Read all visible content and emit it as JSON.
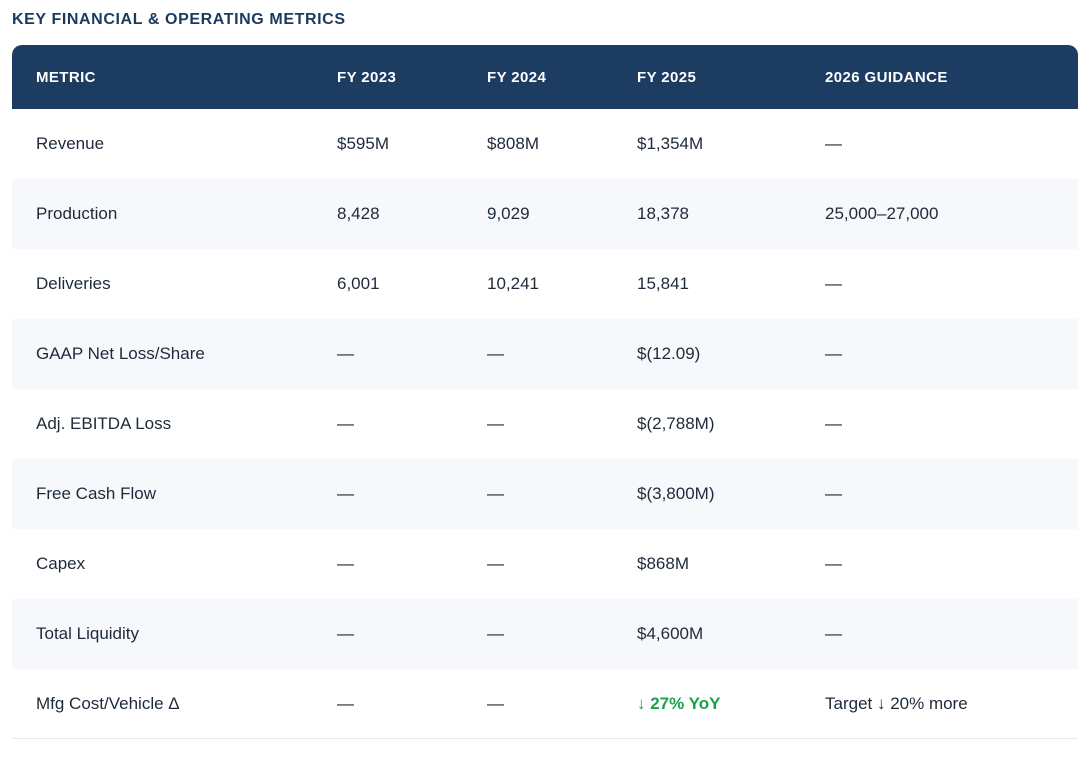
{
  "page": {
    "title": "KEY FINANCIAL & OPERATING METRICS"
  },
  "table": {
    "columns": [
      "METRIC",
      "FY 2023",
      "FY 2024",
      "FY 2025",
      "2026 GUIDANCE"
    ],
    "rows": [
      {
        "metric": "Revenue",
        "fy2023": "$595M",
        "fy2024": "$808M",
        "fy2025": "$1,354M",
        "fy2025_positive": false,
        "guidance": "—"
      },
      {
        "metric": "Production",
        "fy2023": "8,428",
        "fy2024": "9,029",
        "fy2025": "18,378",
        "fy2025_positive": false,
        "guidance": "25,000–27,000"
      },
      {
        "metric": "Deliveries",
        "fy2023": "6,001",
        "fy2024": "10,241",
        "fy2025": "15,841",
        "fy2025_positive": false,
        "guidance": "—"
      },
      {
        "metric": "GAAP Net Loss/Share",
        "fy2023": "—",
        "fy2024": "—",
        "fy2025": "$(12.09)",
        "fy2025_positive": false,
        "guidance": "—"
      },
      {
        "metric": "Adj. EBITDA Loss",
        "fy2023": "—",
        "fy2024": "—",
        "fy2025": "$(2,788M)",
        "fy2025_positive": false,
        "guidance": "—"
      },
      {
        "metric": "Free Cash Flow",
        "fy2023": "—",
        "fy2024": "—",
        "fy2025": "$(3,800M)",
        "fy2025_positive": false,
        "guidance": "—"
      },
      {
        "metric": "Capex",
        "fy2023": "—",
        "fy2024": "—",
        "fy2025": "$868M",
        "fy2025_positive": false,
        "guidance": "—"
      },
      {
        "metric": "Total Liquidity",
        "fy2023": "—",
        "fy2024": "—",
        "fy2025": "$4,600M",
        "fy2025_positive": false,
        "guidance": "—"
      },
      {
        "metric": "Mfg Cost/Vehicle Δ",
        "fy2023": "—",
        "fy2024": "—",
        "fy2025": "↓ 27% YoY",
        "fy2025_positive": true,
        "guidance": "Target ↓ 20% more"
      }
    ]
  },
  "colors": {
    "header_background": "#1d3c61",
    "header_text": "#ffffff",
    "title_text": "#1b3a5f",
    "body_text": "#1e2a3a",
    "row_stripe": "#f7f8fb",
    "bottom_border": "#e7e9ee",
    "positive_green": "#16a34a"
  }
}
